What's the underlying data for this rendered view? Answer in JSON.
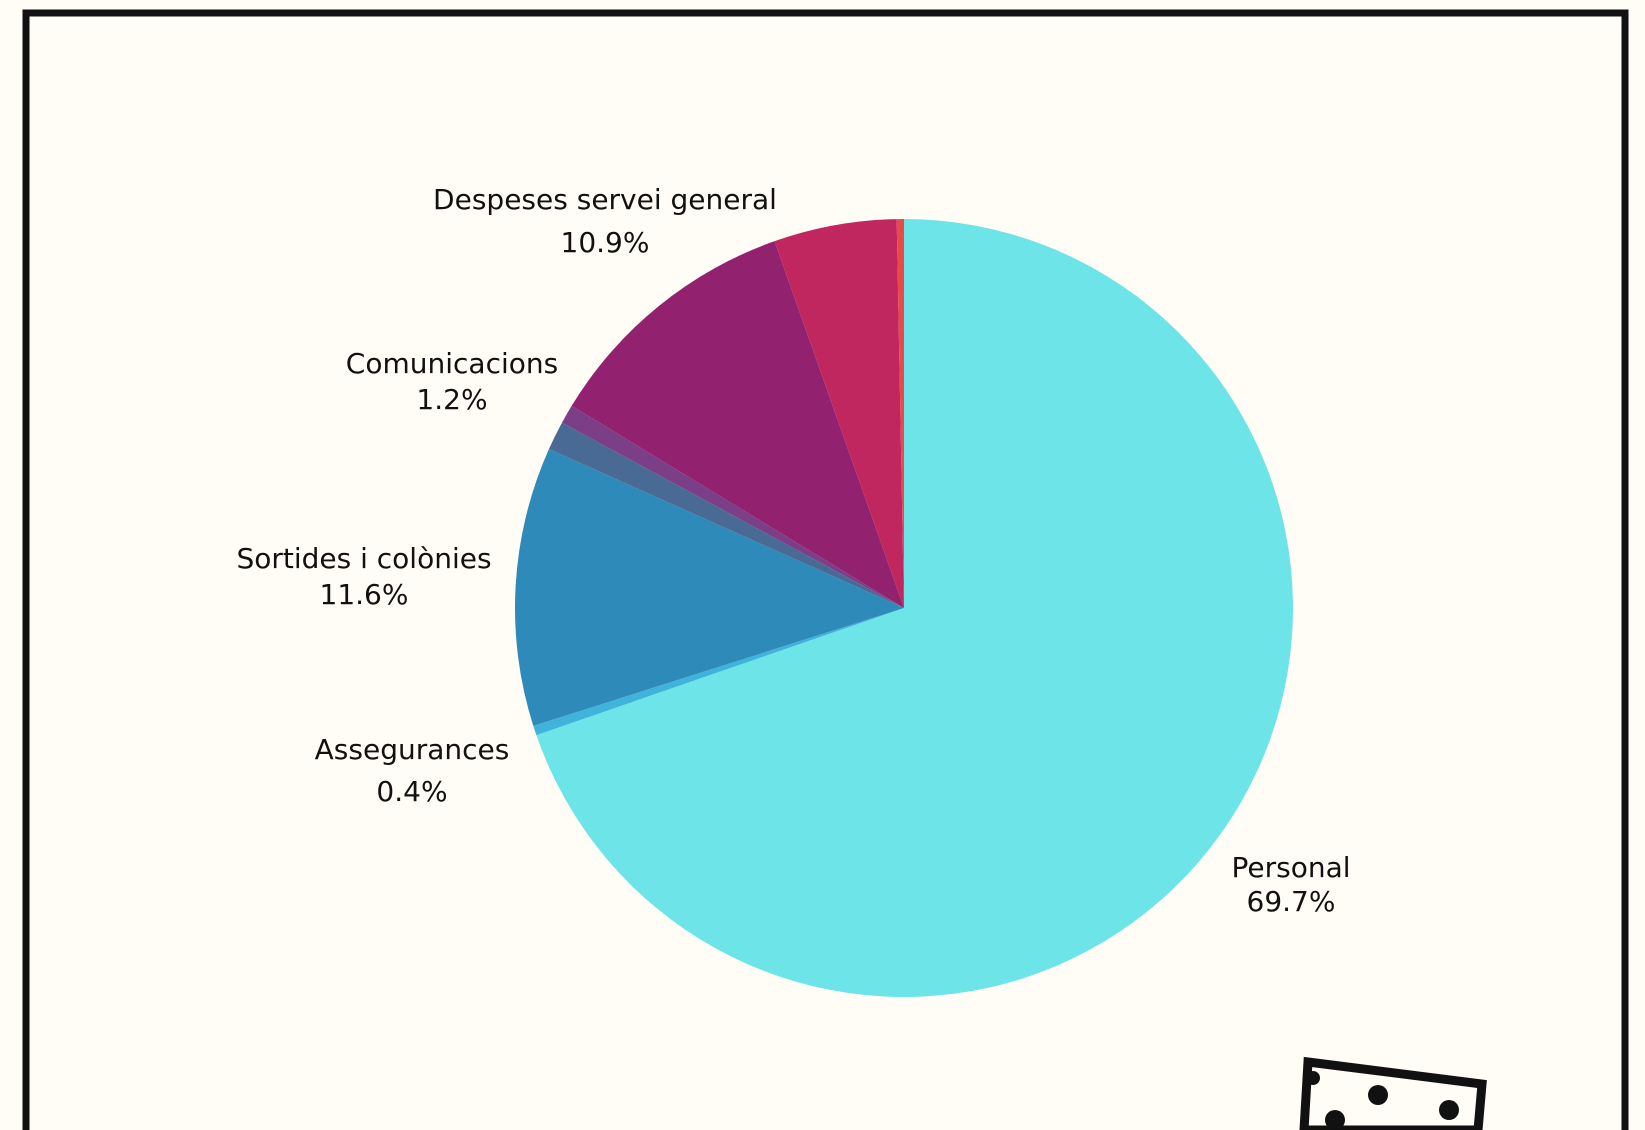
{
  "chart_data": {
    "type": "pie",
    "categories": [
      "Personal",
      "Assegurances",
      "Sortides i colònies",
      "Comunicacions",
      null,
      "Despeses servei general",
      null,
      null
    ],
    "values": [
      69.7,
      0.4,
      11.6,
      1.2,
      0.8,
      10.9,
      5.1,
      0.3
    ],
    "value_labels": [
      "69.7%",
      "0.4%",
      "11.6%",
      "1.2%",
      null,
      "10.9%",
      null,
      null
    ],
    "colors": [
      "#6ce4e8",
      "#3fb3d9",
      "#2e8ab8",
      "#4a6a96",
      "#7a3f86",
      "#922170",
      "#c0275e",
      "#e84a4a"
    ]
  }
}
